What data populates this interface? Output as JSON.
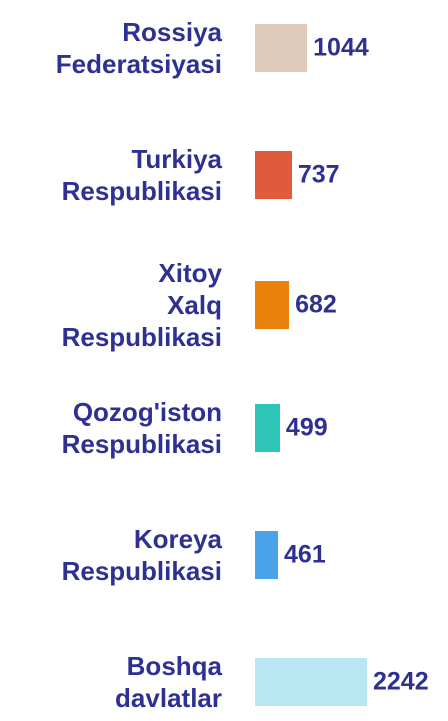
{
  "chart_data": {
    "type": "bar",
    "orientation": "horizontal",
    "categories": [
      "Rossiya\nFederatsiyasi",
      "Turkiya\nRespublikasi",
      "Xitoy\nXalq\nRespublikasi",
      "Qozog'iston\nRespublikasi",
      "Koreya\nRespublikasi",
      "Boshqa\ndavlatlar"
    ],
    "values": [
      1044,
      737,
      682,
      499,
      461,
      2242
    ],
    "colors": [
      "#dfc9b8",
      "#e05a3c",
      "#e8820c",
      "#2ec4b6",
      "#4aa3e8",
      "#b8e6f3"
    ]
  }
}
